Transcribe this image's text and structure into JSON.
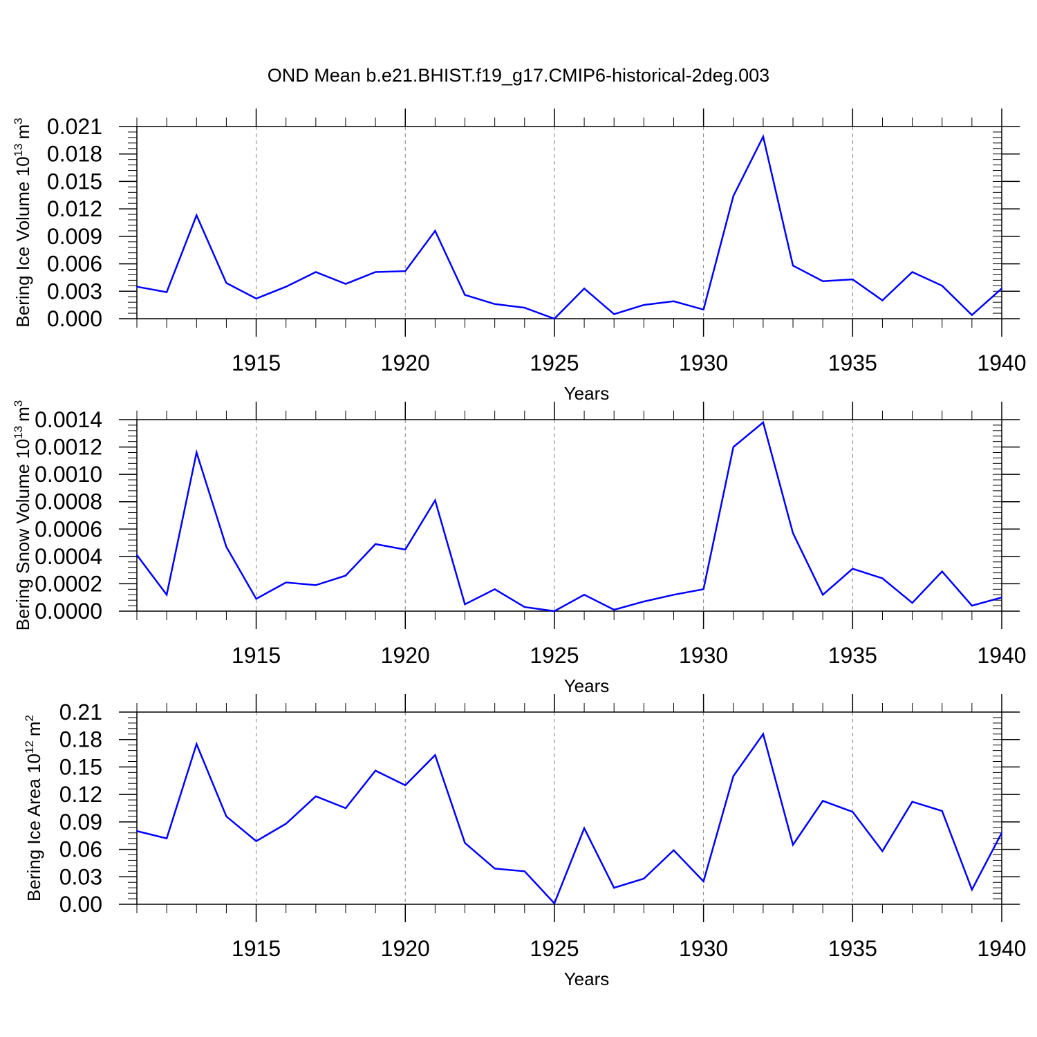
{
  "title": "OND Mean b.e21.BHIST.f19_g17.CMIP6-historical-2deg.003",
  "colors": {
    "line": "#0000ff",
    "axis": "#000000",
    "grid": "#808080"
  },
  "chart_data": [
    {
      "type": "line",
      "ylabel_main": "Bering Ice Volume 10",
      "ylabel_exp": "13",
      "ylabel_unit": "m",
      "ylabel_unit_exp": "3",
      "xlabel": "Years",
      "xlim": [
        1911,
        1940
      ],
      "ylim": [
        0,
        0.021
      ],
      "yticks": [
        "0.000",
        "0.003",
        "0.006",
        "0.009",
        "0.012",
        "0.015",
        "0.018",
        "0.021"
      ],
      "xticks": [
        "1915",
        "1920",
        "1925",
        "1930",
        "1935",
        "1940"
      ],
      "x": [
        1911,
        1912,
        1913,
        1914,
        1915,
        1916,
        1917,
        1918,
        1919,
        1920,
        1921,
        1922,
        1923,
        1924,
        1925,
        1926,
        1927,
        1928,
        1929,
        1930,
        1931,
        1932,
        1933,
        1934,
        1935,
        1936,
        1937,
        1938,
        1939,
        1940
      ],
      "series": [
        {
          "name": "Bering Ice Volume",
          "values": [
            0.0035,
            0.0029,
            0.0113,
            0.0039,
            0.0022,
            0.0035,
            0.0051,
            0.0038,
            0.0051,
            0.0052,
            0.0096,
            0.0026,
            0.0016,
            0.0012,
            0.0,
            0.0033,
            0.0005,
            0.0015,
            0.0019,
            0.001,
            0.0134,
            0.0199,
            0.0058,
            0.0041,
            0.0043,
            0.002,
            0.0051,
            0.0036,
            0.0004,
            0.0033
          ]
        }
      ]
    },
    {
      "type": "line",
      "ylabel_main": "Bering Snow Volume 10",
      "ylabel_exp": "13",
      "ylabel_unit": "m",
      "ylabel_unit_exp": "3",
      "xlabel": "Years",
      "xlim": [
        1911,
        1940
      ],
      "ylim": [
        0,
        0.0014
      ],
      "yticks": [
        "0.0000",
        "0.0002",
        "0.0004",
        "0.0006",
        "0.0008",
        "0.0010",
        "0.0012",
        "0.0014"
      ],
      "xticks": [
        "1915",
        "1920",
        "1925",
        "1930",
        "1935",
        "1940"
      ],
      "x": [
        1911,
        1912,
        1913,
        1914,
        1915,
        1916,
        1917,
        1918,
        1919,
        1920,
        1921,
        1922,
        1923,
        1924,
        1925,
        1926,
        1927,
        1928,
        1929,
        1930,
        1931,
        1932,
        1933,
        1934,
        1935,
        1936,
        1937,
        1938,
        1939,
        1940
      ],
      "series": [
        {
          "name": "Bering Snow Volume",
          "values": [
            0.00041,
            0.00012,
            0.00116,
            0.00047,
            9e-05,
            0.00021,
            0.00019,
            0.00026,
            0.00049,
            0.00045,
            0.00081,
            5e-05,
            0.00016,
            3e-05,
            0.0,
            0.00012,
            1e-05,
            7e-05,
            0.00012,
            0.00016,
            0.0012,
            0.00138,
            0.00057,
            0.00012,
            0.00031,
            0.00024,
            6e-05,
            0.00029,
            4e-05,
            0.0001
          ]
        }
      ]
    },
    {
      "type": "line",
      "ylabel_main": "Bering Ice Area 10",
      "ylabel_exp": "12",
      "ylabel_unit": "m",
      "ylabel_unit_exp": "2",
      "xlabel": "Years",
      "xlim": [
        1911,
        1940
      ],
      "ylim": [
        0,
        0.21
      ],
      "yticks": [
        "0.00",
        "0.03",
        "0.06",
        "0.09",
        "0.12",
        "0.15",
        "0.18",
        "0.21"
      ],
      "xticks": [
        "1915",
        "1920",
        "1925",
        "1930",
        "1935",
        "1940"
      ],
      "x": [
        1911,
        1912,
        1913,
        1914,
        1915,
        1916,
        1917,
        1918,
        1919,
        1920,
        1921,
        1922,
        1923,
        1924,
        1925,
        1926,
        1927,
        1928,
        1929,
        1930,
        1931,
        1932,
        1933,
        1934,
        1935,
        1936,
        1937,
        1938,
        1939,
        1940
      ],
      "series": [
        {
          "name": "Bering Ice Area",
          "values": [
            0.08,
            0.072,
            0.175,
            0.096,
            0.069,
            0.088,
            0.118,
            0.105,
            0.146,
            0.13,
            0.163,
            0.067,
            0.039,
            0.036,
            0.001,
            0.083,
            0.018,
            0.028,
            0.059,
            0.025,
            0.14,
            0.186,
            0.065,
            0.113,
            0.101,
            0.058,
            0.112,
            0.102,
            0.016,
            0.078
          ]
        }
      ]
    }
  ]
}
